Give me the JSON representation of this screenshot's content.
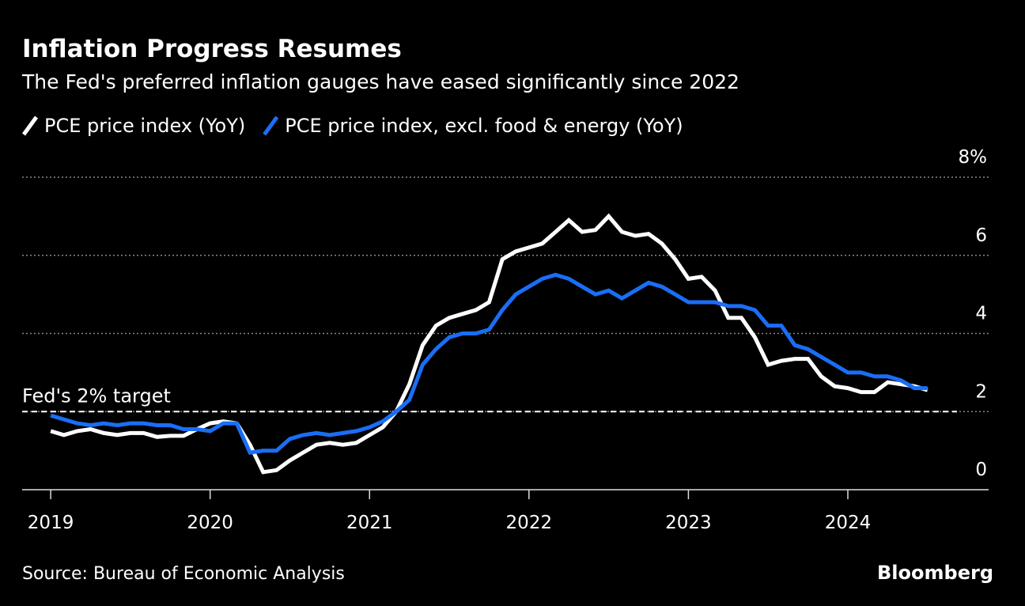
{
  "chart_data": {
    "type": "line",
    "title": "Inflation Progress Resumes",
    "subtitle": "The Fed's preferred inflation gauges have eased significantly since 2022",
    "source": "Source: Bureau of Economic Analysis",
    "brand": "Bloomberg",
    "x": [
      2019,
      2019.083,
      2019.167,
      2019.25,
      2019.333,
      2019.417,
      2019.5,
      2019.583,
      2019.667,
      2019.75,
      2019.833,
      2019.917,
      2020,
      2020.083,
      2020.167,
      2020.25,
      2020.333,
      2020.417,
      2020.5,
      2020.583,
      2020.667,
      2020.75,
      2020.833,
      2020.917,
      2021,
      2021.083,
      2021.167,
      2021.25,
      2021.333,
      2021.417,
      2021.5,
      2021.583,
      2021.667,
      2021.75,
      2021.833,
      2021.917,
      2022,
      2022.083,
      2022.167,
      2022.25,
      2022.333,
      2022.417,
      2022.5,
      2022.583,
      2022.667,
      2022.75,
      2022.833,
      2022.917,
      2023,
      2023.083,
      2023.167,
      2023.25,
      2023.333,
      2023.417,
      2023.5,
      2023.583,
      2023.667,
      2023.75,
      2023.833,
      2023.917,
      2024,
      2024.083,
      2024.167,
      2024.25,
      2024.333,
      2024.417,
      2024.5
    ],
    "series": [
      {
        "name": "PCE price index (YoY)",
        "color": "#ffffff",
        "values": [
          1.5,
          1.4,
          1.5,
          1.55,
          1.45,
          1.4,
          1.45,
          1.45,
          1.35,
          1.38,
          1.38,
          1.55,
          1.7,
          1.75,
          1.7,
          1.15,
          0.45,
          0.5,
          0.75,
          0.95,
          1.15,
          1.2,
          1.15,
          1.2,
          1.4,
          1.6,
          2.0,
          2.7,
          3.7,
          4.2,
          4.4,
          4.5,
          4.6,
          4.8,
          5.9,
          6.1,
          6.2,
          6.3,
          6.6,
          6.9,
          6.6,
          6.65,
          7.0,
          6.6,
          6.5,
          6.55,
          6.3,
          5.9,
          5.4,
          5.45,
          5.1,
          4.4,
          4.4,
          3.9,
          3.2,
          3.3,
          3.35,
          3.35,
          2.9,
          2.65,
          2.6,
          2.5,
          2.5,
          2.75,
          2.7,
          2.65,
          2.55
        ]
      },
      {
        "name": "PCE price index, excl. food & energy (YoY)",
        "color": "#1a6ef5",
        "values": [
          1.9,
          1.8,
          1.7,
          1.65,
          1.7,
          1.65,
          1.7,
          1.7,
          1.65,
          1.65,
          1.55,
          1.55,
          1.5,
          1.7,
          1.7,
          0.95,
          1.0,
          1.0,
          1.3,
          1.4,
          1.45,
          1.4,
          1.45,
          1.5,
          1.6,
          1.75,
          2.0,
          2.3,
          3.2,
          3.6,
          3.9,
          4.0,
          4.0,
          4.1,
          4.6,
          5.0,
          5.2,
          5.4,
          5.5,
          5.4,
          5.2,
          5.0,
          5.1,
          4.9,
          5.1,
          5.3,
          5.2,
          5.0,
          4.8,
          4.8,
          4.8,
          4.7,
          4.7,
          4.6,
          4.2,
          4.2,
          3.7,
          3.6,
          3.4,
          3.2,
          3.0,
          3.0,
          2.9,
          2.9,
          2.8,
          2.6,
          2.6
        ]
      }
    ],
    "xlim": [
      2018.821,
      2024.883
    ],
    "xticks": [
      2019,
      2020,
      2021,
      2022,
      2023,
      2024
    ],
    "ylim": [
      0,
      8
    ],
    "yticks": [
      0,
      2,
      4,
      6,
      {
        "value": 8,
        "label": "8%"
      }
    ],
    "grid": true,
    "target": {
      "value": 2,
      "label": "Fed's 2% target"
    }
  }
}
